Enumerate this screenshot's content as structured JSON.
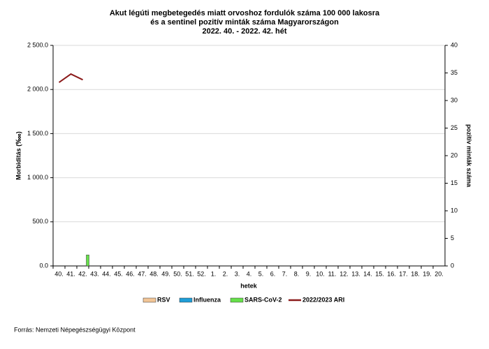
{
  "chart_data": {
    "type": "bar-line",
    "title": [
      "Akut légúti megbetegedés miatt orvoshoz fordulók száma 100 000 lakosra",
      "és a sentinel pozitív minták száma Magyarországon",
      "2022. 40. - 2022. 42. hét"
    ],
    "y_label": "Morbiditás (‱)",
    "y2_label": "pozitív minták száma",
    "x_label": "hetek",
    "source": "Forrás: Nemzeti Népegészségügyi Központ",
    "categories": [
      "40.",
      "41.",
      "42.",
      "43.",
      "44.",
      "45.",
      "46.",
      "47.",
      "48.",
      "49.",
      "50.",
      "51.",
      "52.",
      "1.",
      "2.",
      "3.",
      "4.",
      "5.",
      "6.",
      "7.",
      "8.",
      "9.",
      "10.",
      "11.",
      "12.",
      "13.",
      "14.",
      "15.",
      "16.",
      "17.",
      "18.",
      "19.",
      "20."
    ],
    "ylim": [
      0,
      2500
    ],
    "yticks": [
      {
        "value": 0,
        "label": "0.0"
      },
      {
        "value": 500,
        "label": "500.0"
      },
      {
        "value": 1000,
        "label": "1 000.0"
      },
      {
        "value": 1500,
        "label": "1 500.0"
      },
      {
        "value": 2000,
        "label": "2 000.0"
      },
      {
        "value": 2500,
        "label": "2 500.0"
      }
    ],
    "y2lim": [
      0,
      40
    ],
    "y2ticks": [
      0,
      5,
      10,
      15,
      20,
      25,
      30,
      35,
      40
    ],
    "grid": true,
    "series": [
      {
        "name": "RSV",
        "type": "bar",
        "axis": "y2",
        "color": "#f2c596",
        "values": [
          0,
          0,
          0,
          null,
          null,
          null,
          null,
          null,
          null,
          null,
          null,
          null,
          null,
          null,
          null,
          null,
          null,
          null,
          null,
          null,
          null,
          null,
          null,
          null,
          null,
          null,
          null,
          null,
          null,
          null,
          null,
          null,
          null
        ]
      },
      {
        "name": "Influenza",
        "type": "bar",
        "axis": "y2",
        "color": "#1f9ed8",
        "values": [
          0,
          0,
          0,
          null,
          null,
          null,
          null,
          null,
          null,
          null,
          null,
          null,
          null,
          null,
          null,
          null,
          null,
          null,
          null,
          null,
          null,
          null,
          null,
          null,
          null,
          null,
          null,
          null,
          null,
          null,
          null,
          null,
          null
        ]
      },
      {
        "name": "SARS-CoV-2",
        "type": "bar",
        "axis": "y2",
        "color": "#66e04a",
        "values": [
          0,
          0,
          2,
          null,
          null,
          null,
          null,
          null,
          null,
          null,
          null,
          null,
          null,
          null,
          null,
          null,
          null,
          null,
          null,
          null,
          null,
          null,
          null,
          null,
          null,
          null,
          null,
          null,
          null,
          null,
          null,
          null,
          null
        ]
      },
      {
        "name": "2022/2023 ARI",
        "type": "line",
        "color": "#8b1a1a",
        "values": [
          2080,
          2175,
          2110,
          null,
          null,
          null,
          null,
          null,
          null,
          null,
          null,
          null,
          null,
          null,
          null,
          null,
          null,
          null,
          null,
          null,
          null,
          null,
          null,
          null,
          null,
          null,
          null,
          null,
          null,
          null,
          null,
          null,
          null
        ]
      }
    ]
  }
}
